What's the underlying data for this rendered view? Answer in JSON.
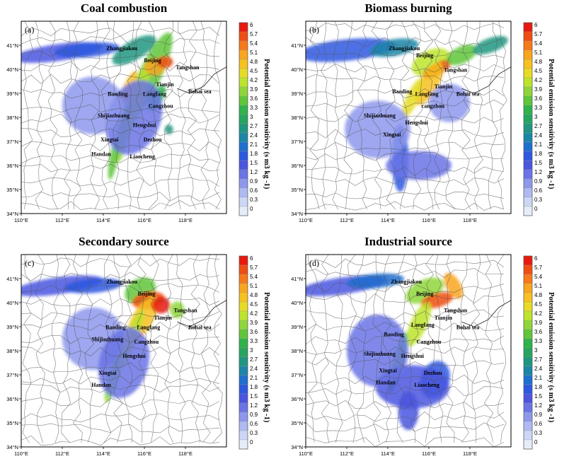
{
  "colorbar": {
    "label": "Potential emission sensitivity (s m3 kg -1)",
    "ticks": [
      "6",
      "5.7",
      "5.4",
      "5.1",
      "4.8",
      "4.5",
      "4.2",
      "3.9",
      "3.6",
      "3.3",
      "3",
      "2.7",
      "2.4",
      "2.1",
      "1.8",
      "1.5",
      "1.2",
      "0.9",
      "0.6",
      "0.3",
      "0"
    ],
    "colors": [
      "#e81a0e",
      "#f04d13",
      "#f7791a",
      "#f9a51e",
      "#f7c120",
      "#e6dc26",
      "#bde42c",
      "#8fd63a",
      "#5fc63a",
      "#2fb34a",
      "#25a65e",
      "#1e9680",
      "#1b86a8",
      "#1f6fd0",
      "#2d58e0",
      "#4b55e0",
      "#6a74e6",
      "#8d98ec",
      "#aebaf2",
      "#ccd7f6",
      "#e6ecfa"
    ]
  },
  "axes": {
    "x_ticks": [
      "110°E",
      "112°E",
      "114°E",
      "116°E",
      "118°E"
    ],
    "y_ticks": [
      "34°N",
      "35°N",
      "36°N",
      "37°N",
      "38°N",
      "39°N",
      "40°N",
      "41°N"
    ]
  },
  "panels": [
    {
      "id": "a",
      "letter": "(a)",
      "title": "Coal combustion",
      "cities": [
        {
          "name": "Zhangjiakou",
          "lon": 114.9,
          "lat": 40.8
        },
        {
          "name": "Beijing",
          "lon": 116.4,
          "lat": 40.3
        },
        {
          "name": "Tangshan",
          "lon": 118.1,
          "lat": 40.0
        },
        {
          "name": "Tianjin",
          "lon": 117.0,
          "lat": 39.3
        },
        {
          "name": "Langfang",
          "lon": 116.5,
          "lat": 38.9
        },
        {
          "name": "Baoding",
          "lon": 114.7,
          "lat": 38.9
        },
        {
          "name": "Cangzhou",
          "lon": 116.8,
          "lat": 38.4
        },
        {
          "name": "Bohai sea",
          "lon": 118.7,
          "lat": 39.0
        },
        {
          "name": "Shijiazhuang",
          "lon": 114.5,
          "lat": 38.0
        },
        {
          "name": "Hengshui",
          "lon": 116.0,
          "lat": 37.6
        },
        {
          "name": "Xingtai",
          "lon": 114.3,
          "lat": 37.0
        },
        {
          "name": "Dezhou",
          "lon": 116.4,
          "lat": 37.0
        },
        {
          "name": "Handan",
          "lon": 113.9,
          "lat": 36.4
        },
        {
          "name": "Liaocheng",
          "lon": 115.9,
          "lat": 36.3
        }
      ]
    },
    {
      "id": "b",
      "letter": "(b)",
      "title": "Biomass burning",
      "cities": [
        {
          "name": "Zhangjiakou",
          "lon": 114.8,
          "lat": 40.8
        },
        {
          "name": "Beijing",
          "lon": 115.8,
          "lat": 40.5
        },
        {
          "name": "Tangshan",
          "lon": 117.3,
          "lat": 39.9
        },
        {
          "name": "Tianjin",
          "lon": 116.7,
          "lat": 39.2
        },
        {
          "name": "Langfang",
          "lon": 115.9,
          "lat": 38.9
        },
        {
          "name": "Baoding",
          "lon": 114.7,
          "lat": 39.0
        },
        {
          "name": "Bohai sea",
          "lon": 117.9,
          "lat": 38.9
        },
        {
          "name": "cangzhou",
          "lon": 116.2,
          "lat": 38.4
        },
        {
          "name": "Shijiazhuang",
          "lon": 113.6,
          "lat": 38.0
        },
        {
          "name": "Hengshui",
          "lon": 115.4,
          "lat": 37.7
        },
        {
          "name": "Xingtai",
          "lon": 114.2,
          "lat": 37.2
        }
      ]
    },
    {
      "id": "c",
      "letter": "(c)",
      "title": "Secondary source",
      "cities": [
        {
          "name": "Zhangjiakou",
          "lon": 114.9,
          "lat": 40.8
        },
        {
          "name": "Beijing",
          "lon": 116.1,
          "lat": 40.3
        },
        {
          "name": "Tangshan",
          "lon": 118.0,
          "lat": 39.6
        },
        {
          "name": "Tianjin",
          "lon": 116.9,
          "lat": 39.3
        },
        {
          "name": "Langfang",
          "lon": 116.2,
          "lat": 38.9
        },
        {
          "name": "Baoding",
          "lon": 114.6,
          "lat": 38.9
        },
        {
          "name": "Bohai sea",
          "lon": 118.7,
          "lat": 38.9
        },
        {
          "name": "Shijiazhuang",
          "lon": 114.2,
          "lat": 38.4
        },
        {
          "name": "Cangzhou",
          "lon": 116.1,
          "lat": 38.3
        },
        {
          "name": "Hengshui",
          "lon": 115.5,
          "lat": 37.7
        },
        {
          "name": "Xingtai",
          "lon": 114.2,
          "lat": 37.0
        },
        {
          "name": "Handan",
          "lon": 113.9,
          "lat": 36.5
        }
      ]
    },
    {
      "id": "d",
      "letter": "(d)",
      "title": "Industrial source",
      "cities": [
        {
          "name": "Zhangjiakou",
          "lon": 114.9,
          "lat": 40.8
        },
        {
          "name": "Beijing",
          "lon": 115.8,
          "lat": 40.3
        },
        {
          "name": "Tangshan",
          "lon": 117.3,
          "lat": 39.6
        },
        {
          "name": "Tianjin",
          "lon": 116.7,
          "lat": 39.3
        },
        {
          "name": "Langfang",
          "lon": 115.7,
          "lat": 39.0
        },
        {
          "name": "Baoding",
          "lon": 114.3,
          "lat": 38.6
        },
        {
          "name": "Bohai sea",
          "lon": 117.9,
          "lat": 38.9
        },
        {
          "name": "Cangzhou",
          "lon": 116.0,
          "lat": 38.3
        },
        {
          "name": "Shijiazhuang",
          "lon": 113.6,
          "lat": 37.8
        },
        {
          "name": "Hengshui",
          "lon": 115.2,
          "lat": 37.7
        },
        {
          "name": "Xingtai",
          "lon": 114.0,
          "lat": 37.1
        },
        {
          "name": "Dezhou",
          "lon": 116.2,
          "lat": 37.0
        },
        {
          "name": "Handan",
          "lon": 113.9,
          "lat": 36.6
        },
        {
          "name": "Liaocheng",
          "lon": 115.9,
          "lat": 36.5
        }
      ]
    }
  ]
}
